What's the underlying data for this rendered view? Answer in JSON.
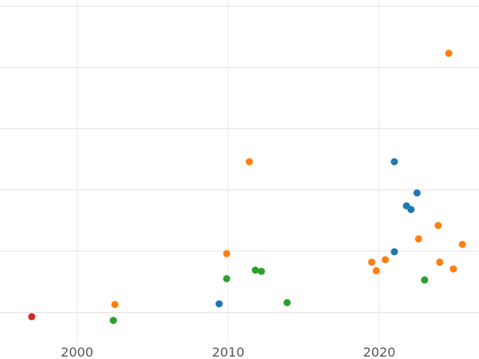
{
  "chart_data": {
    "type": "scatter",
    "title": "",
    "xlabel": "",
    "ylabel": "",
    "xlim": [
      1994.9,
      2026.6
    ],
    "ylim": [
      0.0,
      5.6
    ],
    "grid": true,
    "legend": "none",
    "x_ticks": [
      {
        "value": 2000,
        "label": "2000"
      },
      {
        "value": 2010,
        "label": "2010"
      },
      {
        "value": 2020,
        "label": "2020"
      }
    ],
    "y_gridlines": [
      0.5,
      1.5,
      2.5,
      3.5,
      4.5,
      5.5
    ],
    "series": [
      {
        "color": "#1f77b4",
        "points": [
          {
            "x": 2009.4,
            "y": 0.64
          },
          {
            "x": 2021.0,
            "y": 1.49
          },
          {
            "x": 2021.0,
            "y": 2.96
          },
          {
            "x": 2021.8,
            "y": 2.24
          },
          {
            "x": 2022.1,
            "y": 2.18
          },
          {
            "x": 2022.5,
            "y": 2.45
          }
        ]
      },
      {
        "color": "#ff7f0e",
        "points": [
          {
            "x": 2002.5,
            "y": 0.63
          },
          {
            "x": 2009.9,
            "y": 1.46
          },
          {
            "x": 2011.4,
            "y": 2.96
          },
          {
            "x": 2019.5,
            "y": 1.32
          },
          {
            "x": 2019.8,
            "y": 1.18
          },
          {
            "x": 2020.4,
            "y": 1.36
          },
          {
            "x": 2022.6,
            "y": 1.7
          },
          {
            "x": 2023.9,
            "y": 1.92
          },
          {
            "x": 2024.0,
            "y": 1.32
          },
          {
            "x": 2024.6,
            "y": 4.73
          },
          {
            "x": 2024.9,
            "y": 1.21
          },
          {
            "x": 2025.5,
            "y": 1.61
          }
        ]
      },
      {
        "color": "#2ca02c",
        "points": [
          {
            "x": 2002.4,
            "y": 0.37
          },
          {
            "x": 2009.9,
            "y": 1.05
          },
          {
            "x": 2011.8,
            "y": 1.19
          },
          {
            "x": 2012.2,
            "y": 1.17
          },
          {
            "x": 2013.9,
            "y": 0.66
          },
          {
            "x": 2023.0,
            "y": 1.03
          }
        ]
      },
      {
        "color": "#d62728",
        "points": [
          {
            "x": 1997.0,
            "y": 0.43
          }
        ]
      }
    ]
  }
}
